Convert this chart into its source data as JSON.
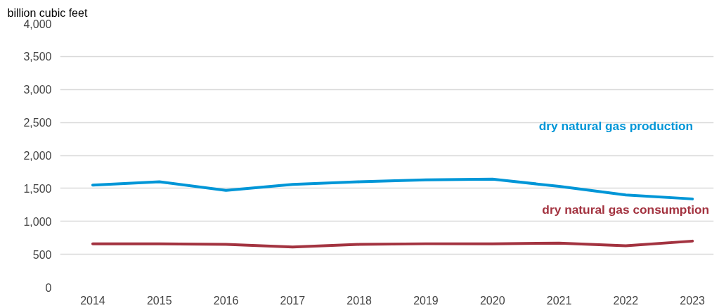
{
  "chart_data": {
    "type": "line",
    "ylabel": "billion cubic feet",
    "categories": [
      "2014",
      "2015",
      "2016",
      "2017",
      "2018",
      "2019",
      "2020",
      "2021",
      "2022",
      "2023"
    ],
    "series": [
      {
        "name": "dry natural gas production",
        "color": "#0096d7",
        "values": [
          1550,
          1600,
          1470,
          1560,
          1600,
          1630,
          1640,
          1530,
          1400,
          1340
        ]
      },
      {
        "name": "dry natural gas consumption",
        "color": "#a33340",
        "values": [
          660,
          660,
          650,
          610,
          650,
          660,
          660,
          670,
          630,
          700
        ]
      }
    ],
    "ylim": [
      0,
      4000
    ],
    "yticks": [
      {
        "value": 0,
        "label": "0"
      },
      {
        "value": 500,
        "label": "500"
      },
      {
        "value": 1000,
        "label": "1,000"
      },
      {
        "value": 1500,
        "label": "1,500"
      },
      {
        "value": 2000,
        "label": "2,000"
      },
      {
        "value": 2500,
        "label": "2,500"
      },
      {
        "value": 3000,
        "label": "3,000"
      },
      {
        "value": 3500,
        "label": "3,500"
      },
      {
        "value": 4000,
        "label": "4,000"
      }
    ],
    "grid": "y",
    "marker": "none",
    "line_style": "solid"
  }
}
